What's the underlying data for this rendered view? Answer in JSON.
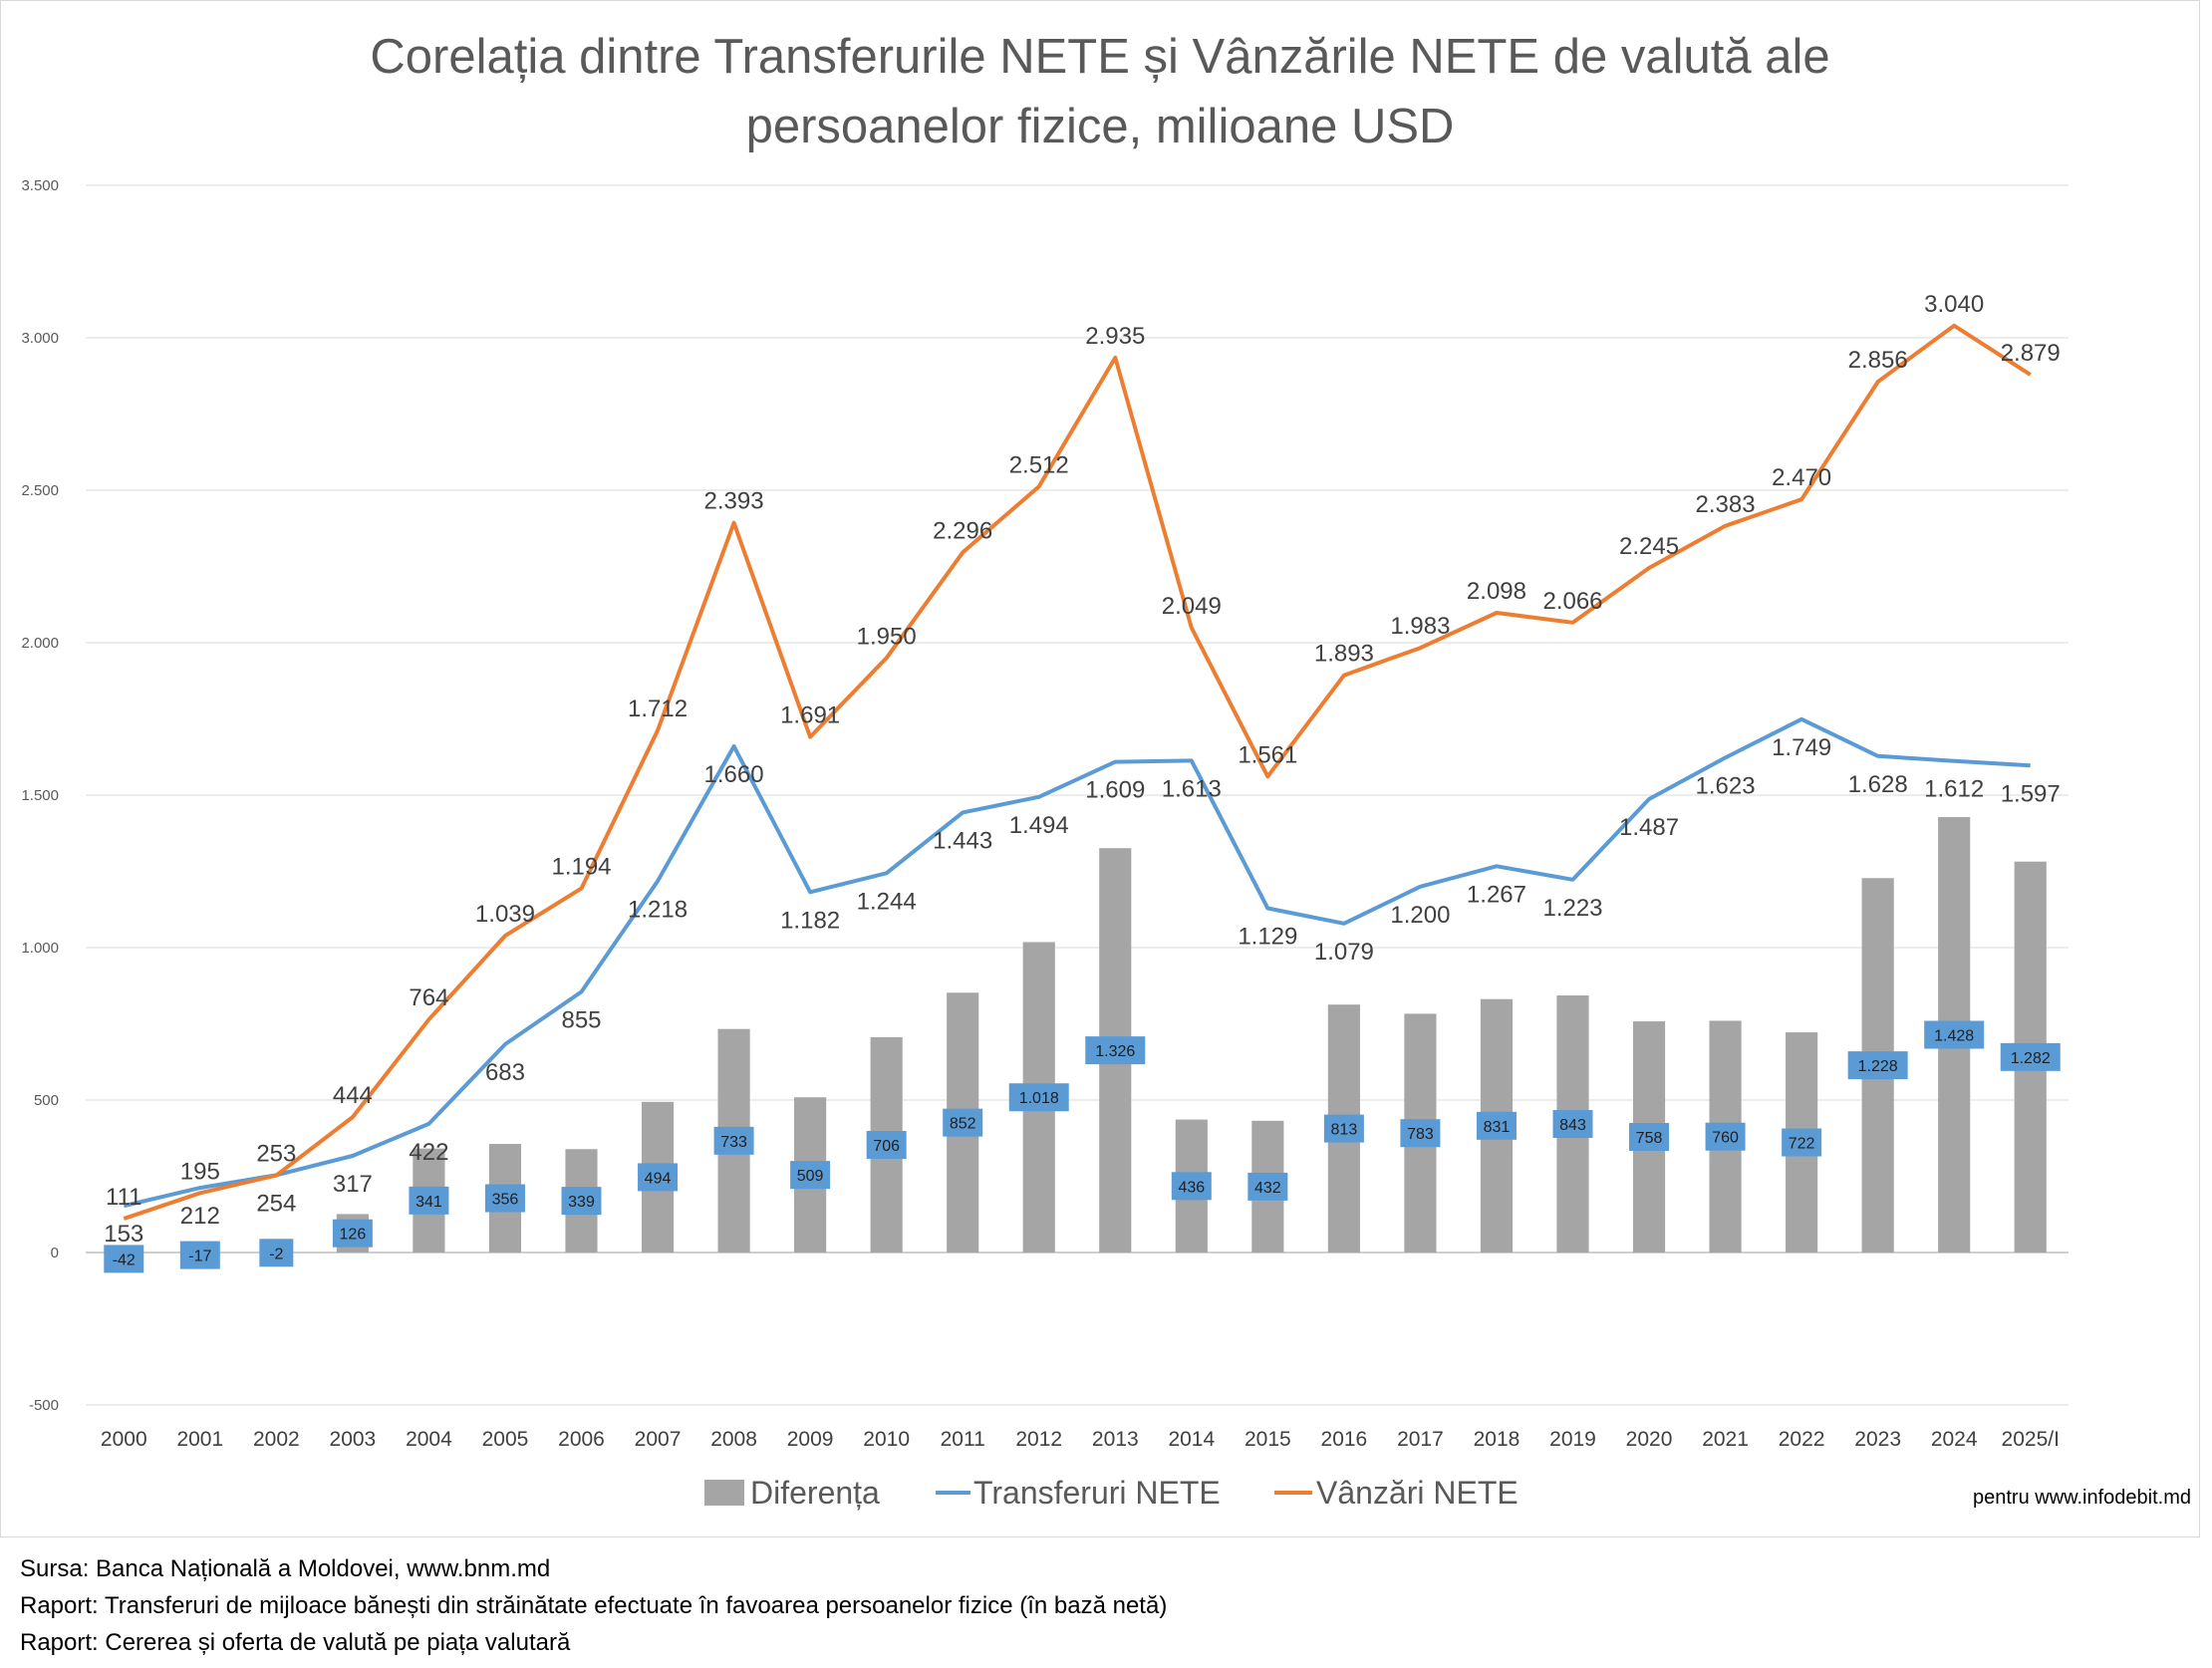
{
  "chart_data": {
    "type": "bar+line",
    "title_line1": "Corelația dintre Transferurile NETE și Vânzările NETE de valută ale",
    "title_line2": "persoanelor fizice, milioane USD",
    "categories": [
      "2000",
      "2001",
      "2002",
      "2003",
      "2004",
      "2005",
      "2006",
      "2007",
      "2008",
      "2009",
      "2010",
      "2011",
      "2012",
      "2013",
      "2014",
      "2015",
      "2016",
      "2017",
      "2018",
      "2019",
      "2020",
      "2021",
      "2022",
      "2023",
      "2024",
      "2025/I"
    ],
    "series": [
      {
        "name": "Diferența",
        "kind": "bar",
        "color": "#a5a5a5",
        "label_bg": "#5b9bd5",
        "values": [
          -42,
          -17,
          -2,
          126,
          341,
          356,
          339,
          494,
          733,
          509,
          706,
          852,
          1018,
          1326,
          436,
          432,
          813,
          783,
          831,
          843,
          758,
          760,
          722,
          1228,
          1428,
          1282
        ],
        "labels": [
          "-42",
          "-17",
          "-2",
          "126",
          "341",
          "356",
          "339",
          "494",
          "733",
          "509",
          "706",
          "852",
          "1.018",
          "1.326",
          "436",
          "432",
          "813",
          "783",
          "831",
          "843",
          "758",
          "760",
          "722",
          "1.228",
          "1.428",
          "1.282"
        ]
      },
      {
        "name": "Transferuri NETE",
        "kind": "line",
        "color": "#5b9bd5",
        "values": [
          153,
          212,
          254,
          317,
          422,
          683,
          855,
          1218,
          1660,
          1182,
          1244,
          1443,
          1494,
          1609,
          1613,
          1129,
          1079,
          1200,
          1267,
          1223,
          1487,
          1623,
          1749,
          1628,
          1612,
          1597
        ],
        "labels": [
          "153",
          "212",
          "254",
          "317",
          "422",
          "683",
          "855",
          "1.218",
          "1.660",
          "1.182",
          "1.244",
          "1.443",
          "1.494",
          "1.609",
          "1.613",
          "1.129",
          "1.079",
          "1.200",
          "1.267",
          "1.223",
          "1.487",
          "1.623",
          "1.749",
          "1.628",
          "1.612",
          "1.597"
        ]
      },
      {
        "name": "Vânzări NETE",
        "kind": "line",
        "color": "#ed7d31",
        "values": [
          111,
          195,
          253,
          444,
          764,
          1039,
          1194,
          1712,
          2393,
          1691,
          1950,
          2296,
          2512,
          2935,
          2049,
          1561,
          1893,
          1983,
          2098,
          2066,
          2245,
          2383,
          2470,
          2856,
          3040,
          2879
        ],
        "labels": [
          "111",
          "195",
          "253",
          "444",
          "764",
          "1.039",
          "1.194",
          "1.712",
          "2.393",
          "1.691",
          "1.950",
          "2.296",
          "2.512",
          "2.935",
          "2.049",
          "1.561",
          "1.893",
          "1.983",
          "2.098",
          "2.066",
          "2.245",
          "2.383",
          "2.470",
          "2.856",
          "3.040",
          "2.879"
        ]
      }
    ],
    "y_ticks": [
      -500,
      0,
      500,
      1000,
      1500,
      2000,
      2500,
      3000,
      3500
    ],
    "y_tick_labels": [
      "-500",
      "0",
      "500",
      "1.000",
      "1.500",
      "2.000",
      "2.500",
      "3.000",
      "3.500"
    ],
    "ylim": [
      -500,
      3500
    ],
    "grid": true,
    "legend_position": "bottom",
    "credit": "pentru www.infodebit.md"
  },
  "sources": [
    "Sursa: Banca Națională a Moldovei, www.bnm.md",
    "Raport: Transferuri de mijloace bănești din străinătate efectuate în favoarea persoanelor fizice (în bază netă)",
    "Raport: Cererea și oferta de valută pe piața valutară"
  ]
}
